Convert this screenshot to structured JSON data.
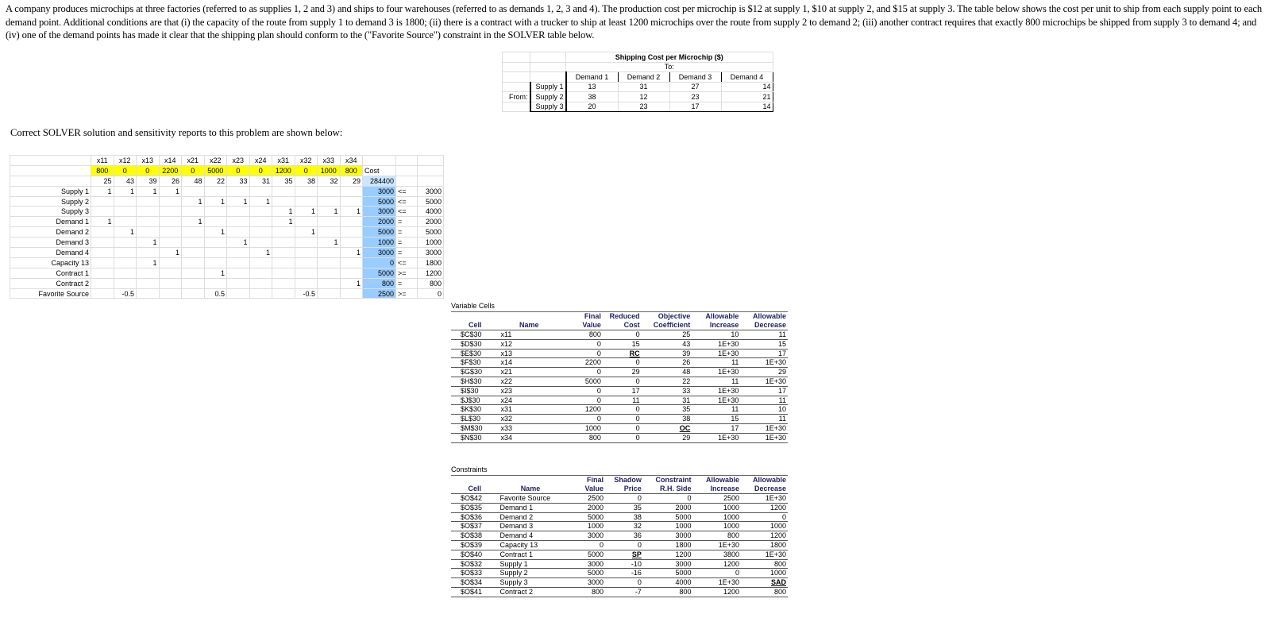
{
  "intro": "A company produces microchips at three factories (referred to as supplies 1, 2 and 3) and ships to four warehouses (referred to as demands 1, 2, 3 and 4).  The production cost per microchip is $12 at supply 1, $10 at supply 2, and $15 at supply 3.  The table below shows the cost per unit to ship from each supply point to each demand point.  Additional conditions are that (i) the capacity of the route from supply 1 to demand 3 is 1800; (ii) there is a contract with a trucker to ship at least 1200 microchips over the route from supply 2 to demand 2; (iii) another contract requires that exactly 800 microchips be shipped from supply 3 to demand 4; and (iv) one of the demand points has made it clear that the shipping plan should conform to the (\"Favorite Source\") constraint in the SOLVER table below.",
  "solver_note": "Correct SOLVER solution and sensitivity reports to this problem are shown below:",
  "shipping": {
    "title": "Shipping Cost per Microchip ($)",
    "to": "To:",
    "from": "From:",
    "columns": [
      "Demand 1",
      "Demand 2",
      "Demand 3",
      "Demand 4"
    ],
    "rows": [
      {
        "label": "Supply 1",
        "values": [
          "13",
          "31",
          "27",
          "14"
        ]
      },
      {
        "label": "Supply 2",
        "values": [
          "38",
          "12",
          "23",
          "21"
        ]
      },
      {
        "label": "Supply 3",
        "values": [
          "20",
          "23",
          "17",
          "14"
        ]
      }
    ]
  },
  "solver": {
    "vars": [
      "x11",
      "x12",
      "x13",
      "x14",
      "x21",
      "x22",
      "x23",
      "x24",
      "x31",
      "x32",
      "x33",
      "x34"
    ],
    "values": [
      "800",
      "0",
      "0",
      "2200",
      "0",
      "5000",
      "0",
      "0",
      "1200",
      "0",
      "1000",
      "800"
    ],
    "cost_label": "Cost",
    "costs": [
      "25",
      "43",
      "39",
      "26",
      "48",
      "22",
      "33",
      "31",
      "35",
      "38",
      "32",
      "29"
    ],
    "total_cost": "284400",
    "rows": [
      {
        "label": "Supply 1",
        "coef": [
          "1",
          "1",
          "1",
          "1",
          "",
          "",
          "",
          "",
          "",
          "",
          "",
          ""
        ],
        "lhs": "3000",
        "sign": "<=",
        "rhs": "3000"
      },
      {
        "label": "Supply 2",
        "coef": [
          "",
          "",
          "",
          "",
          "1",
          "1",
          "1",
          "1",
          "",
          "",
          "",
          ""
        ],
        "lhs": "5000",
        "sign": "<=",
        "rhs": "5000"
      },
      {
        "label": "Supply 3",
        "coef": [
          "",
          "",
          "",
          "",
          "",
          "",
          "",
          "",
          "1",
          "1",
          "1",
          "1"
        ],
        "lhs": "3000",
        "sign": "<=",
        "rhs": "4000"
      },
      {
        "label": "Demand 1",
        "coef": [
          "1",
          "",
          "",
          "",
          "1",
          "",
          "",
          "",
          "1",
          "",
          "",
          ""
        ],
        "lhs": "2000",
        "sign": "=",
        "rhs": "2000"
      },
      {
        "label": "Demand 2",
        "coef": [
          "",
          "1",
          "",
          "",
          "",
          "1",
          "",
          "",
          "",
          "1",
          "",
          ""
        ],
        "lhs": "5000",
        "sign": "=",
        "rhs": "5000"
      },
      {
        "label": "Demand 3",
        "coef": [
          "",
          "",
          "1",
          "",
          "",
          "",
          "1",
          "",
          "",
          "",
          "1",
          ""
        ],
        "lhs": "1000",
        "sign": "=",
        "rhs": "1000"
      },
      {
        "label": "Demand 4",
        "coef": [
          "",
          "",
          "",
          "1",
          "",
          "",
          "",
          "1",
          "",
          "",
          "",
          "1"
        ],
        "lhs": "3000",
        "sign": "=",
        "rhs": "3000"
      },
      {
        "label": "Capacity 13",
        "coef": [
          "",
          "",
          "1",
          "",
          "",
          "",
          "",
          "",
          "",
          "",
          "",
          ""
        ],
        "lhs": "0",
        "sign": "<=",
        "rhs": "1800"
      },
      {
        "label": "Contract 1",
        "coef": [
          "",
          "",
          "",
          "",
          "",
          "1",
          "",
          "",
          "",
          "",
          "",
          ""
        ],
        "lhs": "5000",
        "sign": ">=",
        "rhs": "1200"
      },
      {
        "label": "Contract 2",
        "coef": [
          "",
          "",
          "",
          "",
          "",
          "",
          "",
          "",
          "",
          "",
          "",
          "1"
        ],
        "lhs": "800",
        "sign": "=",
        "rhs": "800"
      },
      {
        "label": "Favorite Source",
        "coef": [
          "",
          "-0.5",
          "",
          "",
          "",
          "0.5",
          "",
          "",
          "",
          "-0.5",
          "",
          ""
        ],
        "lhs": "2500",
        "sign": ">=",
        "rhs": "0"
      }
    ]
  },
  "variable_cells": {
    "title": "Variable Cells",
    "headers": [
      [
        "",
        "",
        "Final",
        "Reduced",
        "Objective",
        "Allowable",
        "Allowable"
      ],
      [
        "Cell",
        "Name",
        "Value",
        "Cost",
        "Coefficient",
        "Increase",
        "Decrease"
      ]
    ],
    "rows": [
      [
        "$C$30",
        "x11",
        "800",
        "0",
        "25",
        "10",
        "11"
      ],
      [
        "$D$30",
        "x12",
        "0",
        "15",
        "43",
        "1E+30",
        "15"
      ],
      [
        "$E$30",
        "x13",
        "0",
        "RC",
        "39",
        "1E+30",
        "17"
      ],
      [
        "$F$30",
        "x14",
        "2200",
        "0",
        "26",
        "11",
        "1E+30"
      ],
      [
        "$G$30",
        "x21",
        "0",
        "29",
        "48",
        "1E+30",
        "29"
      ],
      [
        "$H$30",
        "x22",
        "5000",
        "0",
        "22",
        "11",
        "1E+30"
      ],
      [
        "$I$30",
        "x23",
        "0",
        "17",
        "33",
        "1E+30",
        "17"
      ],
      [
        "$J$30",
        "x24",
        "0",
        "11",
        "31",
        "1E+30",
        "11"
      ],
      [
        "$K$30",
        "x31",
        "1200",
        "0",
        "35",
        "11",
        "10"
      ],
      [
        "$L$30",
        "x32",
        "0",
        "0",
        "38",
        "15",
        "11"
      ],
      [
        "$M$30",
        "x33",
        "1000",
        "0",
        "OC",
        "17",
        "1E+30"
      ],
      [
        "$N$30",
        "x34",
        "800",
        "0",
        "29",
        "1E+30",
        "1E+30"
      ]
    ]
  },
  "constraints": {
    "title": "Constraints",
    "headers": [
      [
        "",
        "",
        "Final",
        "Shadow",
        "Constraint",
        "Allowable",
        "Allowable"
      ],
      [
        "Cell",
        "Name",
        "Value",
        "Price",
        "R.H. Side",
        "Increase",
        "Decrease"
      ]
    ],
    "rows": [
      [
        "$O$42",
        "Favorite Source",
        "2500",
        "0",
        "0",
        "2500",
        "1E+30"
      ],
      [
        "$O$35",
        "Demand 1",
        "2000",
        "35",
        "2000",
        "1000",
        "1200"
      ],
      [
        "$O$36",
        "Demand 2",
        "5000",
        "38",
        "5000",
        "1000",
        "0"
      ],
      [
        "$O$37",
        "Demand 3",
        "1000",
        "32",
        "1000",
        "1000",
        "1000"
      ],
      [
        "$O$38",
        "Demand 4",
        "3000",
        "36",
        "3000",
        "800",
        "1200"
      ],
      [
        "$O$39",
        "Capacity 13",
        "0",
        "0",
        "1800",
        "1E+30",
        "1800"
      ],
      [
        "$O$40",
        "Contract 1",
        "5000",
        "SP",
        "1200",
        "3800",
        "1E+30"
      ],
      [
        "$O$32",
        "Supply 1",
        "3000",
        "-10",
        "3000",
        "1200",
        "800"
      ],
      [
        "$O$33",
        "Supply 2",
        "5000",
        "-16",
        "5000",
        "0",
        "1000"
      ],
      [
        "$O$34",
        "Supply 3",
        "3000",
        "0",
        "4000",
        "1E+30",
        "SAD"
      ],
      [
        "$O$41",
        "Contract 2",
        "800",
        "-7",
        "800",
        "1200",
        "800"
      ]
    ]
  },
  "colors": {
    "decision_fill": "#ffff00",
    "constraint_fill": "#99ccff",
    "header_text": "#1f1f5f"
  }
}
